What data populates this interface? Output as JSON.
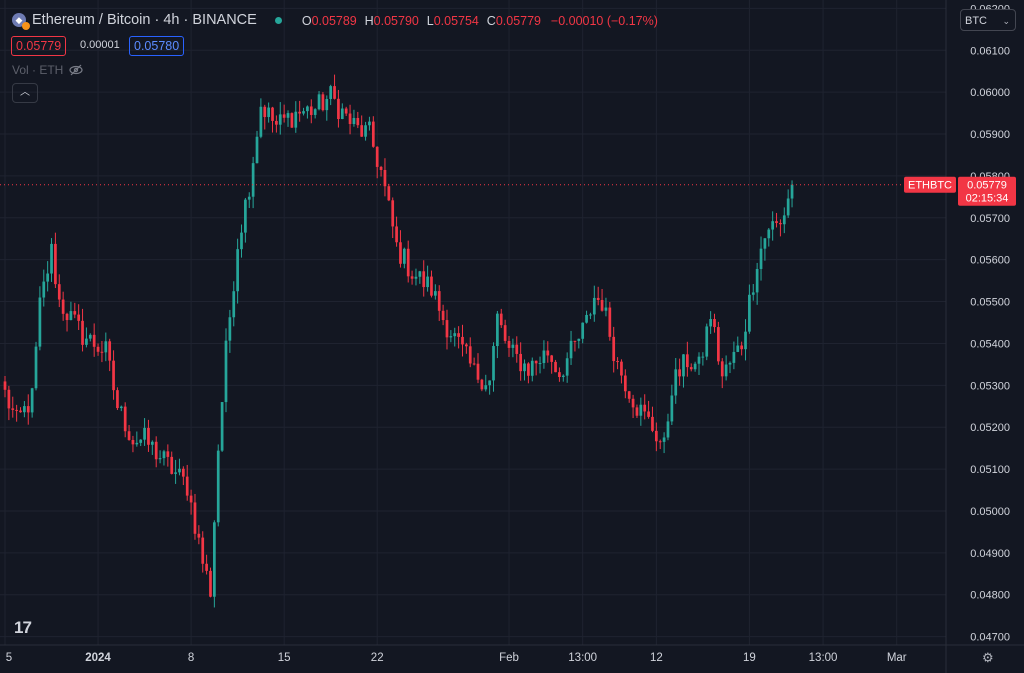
{
  "header": {
    "title": "Ethereum / Bitcoin · 4h · BINANCE",
    "o_label": "O",
    "o_value": "0.05789",
    "h_label": "H",
    "h_value": "0.05790",
    "l_label": "L",
    "l_value": "0.05754",
    "c_label": "C",
    "c_value": "0.05779",
    "change": "−0.00010 (−0.17%)"
  },
  "trade": {
    "sell": "0.05779",
    "spread": "0.00001",
    "buy": "0.05780"
  },
  "volume_label": "Vol · ETH",
  "currency_button": "BTC",
  "colors": {
    "background": "#131722",
    "up": "#26a69a",
    "down": "#f23645",
    "grid": "#1f2330",
    "axis_text": "#d1d4dc"
  },
  "chart_data": {
    "type": "candlestick",
    "symbol": "ETHBTC",
    "interval": "4h",
    "y_ticks": [
      "0.04700",
      "0.04800",
      "0.04900",
      "0.05000",
      "0.05100",
      "0.05200",
      "0.05300",
      "0.05400",
      "0.05500",
      "0.05600",
      "0.05700",
      "0.05800",
      "0.05900",
      "0.06000",
      "0.06100",
      "0.06200"
    ],
    "x_ticks": [
      {
        "label": "5",
        "candle": 0
      },
      {
        "label": "2024",
        "candle": 24
      },
      {
        "label": "8",
        "candle": 48
      },
      {
        "label": "15",
        "candle": 72
      },
      {
        "label": "22",
        "candle": 96
      },
      {
        "label": "Feb",
        "candle": 130
      },
      {
        "label": "13:00",
        "candle": 149
      },
      {
        "label": "12",
        "candle": 168
      },
      {
        "label": "19",
        "candle": 192
      },
      {
        "label": "13:00",
        "candle": 211
      },
      {
        "label": "Mar",
        "candle": 230
      }
    ],
    "ylim": [
      0.0468,
      0.0622
    ],
    "candles_shown": 204,
    "slots_total": 244,
    "last_price": "0.05779",
    "price_label": "ETHBTC",
    "countdown": "02:15:34",
    "anchor_closes": [
      [
        0,
        0.0528
      ],
      [
        3,
        0.0521
      ],
      [
        7,
        0.0527
      ],
      [
        9,
        0.0549
      ],
      [
        12,
        0.0562
      ],
      [
        14,
        0.055
      ],
      [
        20,
        0.0542
      ],
      [
        26,
        0.0538
      ],
      [
        29,
        0.0525
      ],
      [
        33,
        0.0517
      ],
      [
        36,
        0.0517
      ],
      [
        40,
        0.0513
      ],
      [
        47,
        0.0506
      ],
      [
        51,
        0.0488
      ],
      [
        53,
        0.0481
      ],
      [
        55,
        0.0515
      ],
      [
        57,
        0.0538
      ],
      [
        60,
        0.0564
      ],
      [
        63,
        0.0578
      ],
      [
        66,
        0.0597
      ],
      [
        70,
        0.0592
      ],
      [
        75,
        0.0595
      ],
      [
        80,
        0.0596
      ],
      [
        84,
        0.0599
      ],
      [
        88,
        0.0594
      ],
      [
        91,
        0.0591
      ],
      [
        94,
        0.059
      ],
      [
        97,
        0.0581
      ],
      [
        101,
        0.0563
      ],
      [
        105,
        0.0557
      ],
      [
        110,
        0.0553
      ],
      [
        113,
        0.0546
      ],
      [
        118,
        0.0538
      ],
      [
        121,
        0.0533
      ],
      [
        125,
        0.0531
      ],
      [
        127,
        0.0546
      ],
      [
        130,
        0.0538
      ],
      [
        135,
        0.0534
      ],
      [
        140,
        0.0538
      ],
      [
        143,
        0.0533
      ],
      [
        148,
        0.0541
      ],
      [
        150,
        0.0545
      ],
      [
        152,
        0.0551
      ],
      [
        154,
        0.055
      ],
      [
        158,
        0.0535
      ],
      [
        163,
        0.0525
      ],
      [
        167,
        0.052
      ],
      [
        170,
        0.0515
      ],
      [
        172,
        0.053
      ],
      [
        176,
        0.0536
      ],
      [
        179,
        0.0534
      ],
      [
        182,
        0.0547
      ],
      [
        185,
        0.0532
      ],
      [
        190,
        0.054
      ],
      [
        194,
        0.056
      ],
      [
        197,
        0.0568
      ],
      [
        200,
        0.0568
      ],
      [
        202,
        0.0575
      ],
      [
        203,
        0.05779
      ]
    ]
  }
}
